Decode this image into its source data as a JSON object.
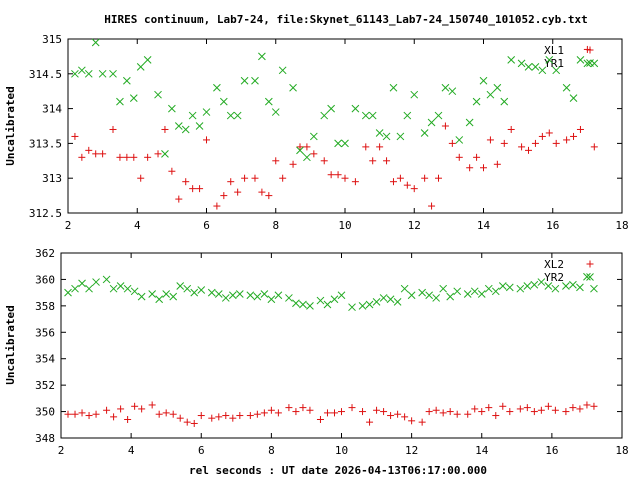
{
  "chart_data": [
    {
      "type": "scatter",
      "title": "HIRES continuum, Lab7-24, file:Skynet_61143_Lab7-24_150740_101052.cyb.txt",
      "xlabel": "",
      "ylabel": "Uncalibrated",
      "xlim": [
        2,
        18
      ],
      "ylim": [
        312.5,
        315
      ],
      "xticks": [
        "2",
        "4",
        "6",
        "8",
        "10",
        "12",
        "14",
        "16",
        "18"
      ],
      "yticks": [
        "312.5",
        "313",
        "313.5",
        "314",
        "314.5",
        "315"
      ],
      "legend_position": "top-right",
      "series": [
        {
          "name": "XL1",
          "marker": "plus",
          "color": "#dd1111",
          "x": [
            2.2,
            2.4,
            2.6,
            2.8,
            3.0,
            3.3,
            3.5,
            3.7,
            3.9,
            4.1,
            4.3,
            4.6,
            4.8,
            5.0,
            5.2,
            5.4,
            5.6,
            5.8,
            6.0,
            6.3,
            6.5,
            6.7,
            6.9,
            7.1,
            7.4,
            7.6,
            7.8,
            8.0,
            8.2,
            8.5,
            8.7,
            8.9,
            9.1,
            9.4,
            9.6,
            9.8,
            10.0,
            10.3,
            10.6,
            10.8,
            11.0,
            11.2,
            11.4,
            11.6,
            11.8,
            12.0,
            12.3,
            12.5,
            12.7,
            12.9,
            13.1,
            13.3,
            13.6,
            13.8,
            14.0,
            14.2,
            14.4,
            14.6,
            14.8,
            15.1,
            15.3,
            15.5,
            15.7,
            15.9,
            16.1,
            16.4,
            16.6,
            16.8,
            17.0,
            17.2
          ],
          "y": [
            313.6,
            313.3,
            313.4,
            313.35,
            313.35,
            313.7,
            313.3,
            313.3,
            313.3,
            313.0,
            313.3,
            313.35,
            313.7,
            313.1,
            312.7,
            312.95,
            312.85,
            312.85,
            313.55,
            312.6,
            312.75,
            312.95,
            312.8,
            313.0,
            313.0,
            312.8,
            312.75,
            313.25,
            313.0,
            313.2,
            313.45,
            313.45,
            313.35,
            313.25,
            313.05,
            313.05,
            313.0,
            312.95,
            313.45,
            313.25,
            313.45,
            313.25,
            312.95,
            313.0,
            312.9,
            312.85,
            313.0,
            312.6,
            313.0,
            313.75,
            313.5,
            313.3,
            313.15,
            313.3,
            313.15,
            313.55,
            313.2,
            313.5,
            313.7,
            313.45,
            313.4,
            313.5,
            313.6,
            313.65,
            313.5,
            313.55,
            313.6,
            313.7,
            314.85,
            313.45
          ]
        },
        {
          "name": "YR1",
          "marker": "cross",
          "color": "#22aa22",
          "x": [
            2.2,
            2.4,
            2.6,
            2.8,
            3.0,
            3.3,
            3.5,
            3.7,
            3.9,
            4.1,
            4.3,
            4.6,
            4.8,
            5.0,
            5.2,
            5.4,
            5.6,
            5.8,
            6.0,
            6.3,
            6.5,
            6.7,
            6.9,
            7.1,
            7.4,
            7.6,
            7.8,
            8.0,
            8.2,
            8.5,
            8.7,
            8.9,
            9.1,
            9.4,
            9.6,
            9.8,
            10.0,
            10.3,
            10.6,
            10.8,
            11.0,
            11.2,
            11.4,
            11.6,
            11.8,
            12.0,
            12.3,
            12.5,
            12.7,
            12.9,
            13.1,
            13.3,
            13.6,
            13.8,
            14.0,
            14.2,
            14.4,
            14.6,
            14.8,
            15.1,
            15.3,
            15.5,
            15.7,
            15.9,
            16.1,
            16.4,
            16.6,
            16.8,
            17.0,
            17.2
          ],
          "y": [
            314.5,
            314.55,
            314.5,
            314.95,
            314.5,
            314.5,
            314.1,
            314.4,
            314.15,
            314.6,
            314.7,
            314.2,
            313.35,
            314.0,
            313.75,
            313.7,
            313.9,
            313.75,
            313.95,
            314.3,
            314.1,
            313.9,
            313.9,
            314.4,
            314.4,
            314.75,
            314.1,
            313.95,
            314.55,
            314.3,
            313.4,
            313.3,
            313.6,
            313.9,
            314.0,
            313.5,
            313.5,
            314.0,
            313.9,
            313.9,
            313.65,
            313.6,
            314.3,
            313.6,
            313.9,
            314.2,
            313.65,
            313.8,
            313.9,
            314.3,
            314.25,
            313.55,
            313.8,
            314.1,
            314.4,
            314.2,
            314.3,
            314.1,
            314.7,
            314.65,
            314.6,
            314.6,
            314.55,
            314.7,
            314.55,
            314.3,
            314.15,
            314.7,
            314.65,
            314.65
          ]
        }
      ]
    },
    {
      "type": "scatter",
      "title": "",
      "xlabel": "rel seconds : UT date 2026-04-13T06:17:00.000",
      "ylabel": "Uncalibrated",
      "xlim": [
        2,
        18
      ],
      "ylim": [
        348,
        362
      ],
      "xticks": [
        "2",
        "4",
        "6",
        "8",
        "10",
        "12",
        "14",
        "16",
        "18"
      ],
      "yticks": [
        "348",
        "350",
        "352",
        "354",
        "356",
        "358",
        "360",
        "362"
      ],
      "legend_position": "top-right",
      "series": [
        {
          "name": "XL2",
          "marker": "plus",
          "color": "#dd1111",
          "x": [
            2.2,
            2.4,
            2.6,
            2.8,
            3.0,
            3.3,
            3.5,
            3.7,
            3.9,
            4.1,
            4.3,
            4.6,
            4.8,
            5.0,
            5.2,
            5.4,
            5.6,
            5.8,
            6.0,
            6.3,
            6.5,
            6.7,
            6.9,
            7.1,
            7.4,
            7.6,
            7.8,
            8.0,
            8.2,
            8.5,
            8.7,
            8.9,
            9.1,
            9.4,
            9.6,
            9.8,
            10.0,
            10.3,
            10.6,
            10.8,
            11.0,
            11.2,
            11.4,
            11.6,
            11.8,
            12.0,
            12.3,
            12.5,
            12.7,
            12.9,
            13.1,
            13.3,
            13.6,
            13.8,
            14.0,
            14.2,
            14.4,
            14.6,
            14.8,
            15.1,
            15.3,
            15.5,
            15.7,
            15.9,
            16.1,
            16.4,
            16.6,
            16.8,
            17.0,
            17.2
          ],
          "y": [
            349.8,
            349.8,
            349.9,
            349.7,
            349.8,
            350.1,
            349.6,
            350.2,
            349.4,
            350.4,
            350.2,
            350.5,
            349.8,
            349.9,
            349.8,
            349.5,
            349.2,
            349.1,
            349.7,
            349.5,
            349.6,
            349.7,
            349.5,
            349.7,
            349.7,
            349.8,
            349.9,
            350.1,
            349.9,
            350.3,
            350.0,
            350.3,
            350.1,
            349.4,
            349.9,
            349.9,
            350.0,
            350.3,
            350.0,
            349.2,
            350.1,
            350.0,
            349.7,
            349.8,
            349.6,
            349.3,
            349.2,
            350.0,
            350.1,
            349.9,
            350.0,
            349.8,
            349.8,
            350.2,
            350.0,
            350.3,
            349.7,
            350.4,
            350.0,
            350.2,
            350.3,
            350.0,
            350.1,
            350.4,
            350.1,
            350.0,
            350.3,
            350.2,
            350.5,
            350.4
          ]
        },
        {
          "name": "YR2",
          "marker": "cross",
          "color": "#22aa22",
          "x": [
            2.2,
            2.4,
            2.6,
            2.8,
            3.0,
            3.3,
            3.5,
            3.7,
            3.9,
            4.1,
            4.3,
            4.6,
            4.8,
            5.0,
            5.2,
            5.4,
            5.6,
            5.8,
            6.0,
            6.3,
            6.5,
            6.7,
            6.9,
            7.1,
            7.4,
            7.6,
            7.8,
            8.0,
            8.2,
            8.5,
            8.7,
            8.9,
            9.1,
            9.4,
            9.6,
            9.8,
            10.0,
            10.3,
            10.6,
            10.8,
            11.0,
            11.2,
            11.4,
            11.6,
            11.8,
            12.0,
            12.3,
            12.5,
            12.7,
            12.9,
            13.1,
            13.3,
            13.6,
            13.8,
            14.0,
            14.2,
            14.4,
            14.6,
            14.8,
            15.1,
            15.3,
            15.5,
            15.7,
            15.9,
            16.1,
            16.4,
            16.6,
            16.8,
            17.0,
            17.2
          ],
          "y": [
            359.0,
            359.3,
            359.7,
            359.3,
            359.8,
            360.0,
            359.3,
            359.5,
            359.3,
            359.1,
            358.7,
            358.9,
            358.5,
            358.9,
            358.7,
            359.5,
            359.3,
            359.0,
            359.2,
            359.0,
            358.9,
            358.6,
            358.8,
            358.9,
            358.8,
            358.7,
            358.9,
            358.5,
            358.8,
            358.6,
            358.2,
            358.1,
            358.0,
            358.4,
            358.1,
            358.5,
            358.8,
            357.9,
            358.0,
            358.1,
            358.3,
            358.6,
            358.5,
            358.3,
            359.3,
            358.8,
            359.0,
            358.8,
            358.6,
            359.3,
            358.7,
            359.1,
            358.9,
            359.1,
            358.9,
            359.3,
            359.1,
            359.5,
            359.4,
            359.3,
            359.5,
            359.6,
            359.8,
            359.5,
            359.3,
            359.5,
            359.6,
            359.4,
            360.2,
            359.3
          ]
        }
      ]
    }
  ]
}
